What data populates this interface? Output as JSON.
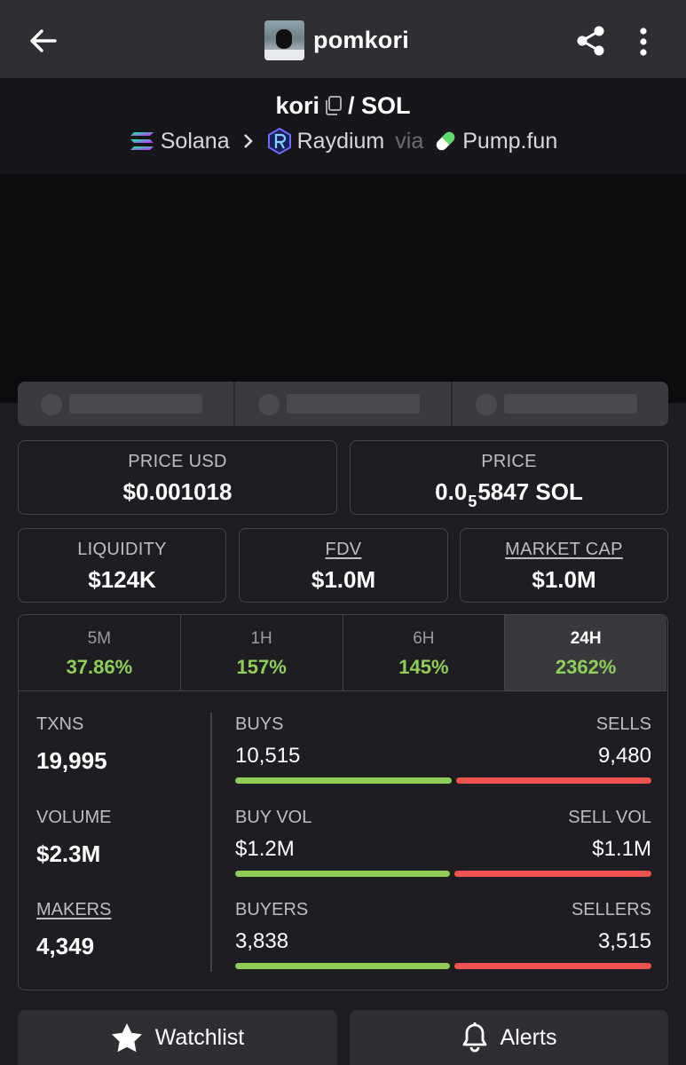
{
  "header": {
    "title": "pomkori"
  },
  "pair": {
    "base": "kori",
    "separator": "/",
    "quote": "SOL",
    "chain": "Solana",
    "dex": "Raydium",
    "via": "via",
    "launchpad": "Pump.fun"
  },
  "stats": {
    "price_usd_label": "PRICE USD",
    "price_usd_value": "$0.001018",
    "price_label": "PRICE",
    "price_prefix": "0.0",
    "price_sub": "5",
    "price_suffix": "5847 SOL",
    "liquidity_label": "LIQUIDITY",
    "liquidity_value": "$124K",
    "fdv_label": "FDV",
    "fdv_value": "$1.0M",
    "mcap_label": "MARKET CAP",
    "mcap_value": "$1.0M"
  },
  "timeframes": [
    {
      "label": "5M",
      "change": "37.86%"
    },
    {
      "label": "1H",
      "change": "157%"
    },
    {
      "label": "6H",
      "change": "145%"
    },
    {
      "label": "24H",
      "change": "2362%",
      "active": true
    }
  ],
  "activity": {
    "txns_label": "TXNS",
    "txns_value": "19,995",
    "volume_label": "VOLUME",
    "volume_value": "$2.3M",
    "makers_label": "MAKERS",
    "makers_value": "4,349",
    "buys_label": "BUYS",
    "buys_value": "10,515",
    "sells_label": "SELLS",
    "sells_value": "9,480",
    "buy_fraction": 0.526,
    "buy_vol_label": "BUY VOL",
    "buy_vol_value": "$1.2M",
    "sell_vol_label": "SELL VOL",
    "sell_vol_value": "$1.1M",
    "buy_vol_fraction": 0.522,
    "buyers_label": "BUYERS",
    "buyers_value": "3,838",
    "sellers_label": "SELLERS",
    "sellers_value": "3,515",
    "buyers_fraction": 0.522
  },
  "actions": {
    "watchlist": "Watchlist",
    "alerts": "Alerts"
  },
  "colors": {
    "positive": "#8fcf58",
    "negative": "#ef5350"
  }
}
